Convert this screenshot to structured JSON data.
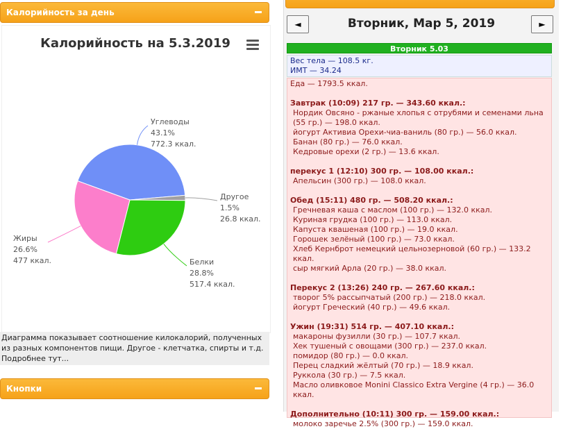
{
  "left_panel": {
    "header": "Калорийность за день",
    "description": "Диаграмма показывает соотношение килокалорий, полученных из разных компонентов пищи. Другое - клетчатка, спирты и т.д. Подробнее тут...",
    "buttons_header": "Кнопки"
  },
  "chart_data": {
    "type": "pie",
    "title": "Калорийность на 5.3.2019",
    "categories": [
      "Углеводы",
      "Другое",
      "Белки",
      "Жиры"
    ],
    "values": [
      43.1,
      1.5,
      28.8,
      26.6
    ],
    "value_labels": [
      "43.1%",
      "1.5%",
      "28.8%",
      "26.6%"
    ],
    "kcal_labels": [
      "772.3 ккал.",
      "26.8 ккал.",
      "517.4 ккал.",
      "477 ккал."
    ],
    "colors": [
      "#6f8ff7",
      "#a0a0a0",
      "#2ecc11",
      "#fc7ecb"
    ]
  },
  "right_panel": {
    "date_header": "Вторник, Мар 5, 2019",
    "prev": "◄",
    "next": "►",
    "day_bar": "Вторник 5.03",
    "body": [
      "Вес тела — 108.5 кг.",
      "ИМТ — 34.24"
    ],
    "food_total": "Еда — 1793.5 ккал.",
    "meals": [
      {
        "title": "Завтрак (10:09) 217 гр. — 343.60 ккал.:",
        "items": [
          "Нордик Овсяно - ржаные хлопья с отрубями и семенами льна (55 гр.) — 198.0 ккал.",
          "йогурт Активиа Орехи-чиа-ваниль (80 гр.) — 56.0 ккал.",
          "Банан (80 гр.) — 76.0 ккал.",
          "Кедровые орехи (2 гр.) — 13.6 ккал."
        ]
      },
      {
        "title": "перекус 1 (12:10) 300 гр. — 108.00 ккал.:",
        "items": [
          "Апельсин (300 гр.) — 108.0 ккал."
        ]
      },
      {
        "title": "Обед (15:11) 480 гр. — 508.20 ккал.:",
        "items": [
          "Гречневая каша с маслом (100 гр.) — 132.0 ккал.",
          "Куриная грудка (100 гр.) — 113.0 ккал.",
          "Капуста квашеная (100 гр.) — 19.0 ккал.",
          "Горошек зелёный (100 гр.) — 73.0 ккал.",
          "Хлеб Кернброт немецкий цельнозерновой (60 гр.) — 133.2 ккал.",
          "сыр мягкий Арла (20 гр.) — 38.0 ккал."
        ]
      },
      {
        "title": "Перекус 2 (13:26) 240 гр. — 267.60 ккал.:",
        "items": [
          "творог 5% рассыпчатый (200 гр.) — 218.0 ккал.",
          "йогурт Греческий (40 гр.) — 49.6 ккал."
        ]
      },
      {
        "title": "Ужин (19:31) 514 гр. — 407.10 ккал.:",
        "items": [
          "макароны фузилли (30 гр.) — 107.7 ккал.",
          "Хек тушеный с овощами (300 гр.) — 237.0 ккал.",
          "помидор (80 гр.) — 0.0 ккал.",
          "Перец сладкий жёлтый (70 гр.) — 18.9 ккал.",
          "Руккола (30 гр.) — 7.5 ккал.",
          "Масло оливковое Monini Classico Extra Vergine (4 гр.) — 36.0 ккал."
        ]
      },
      {
        "title": "Дополнительно (10:11) 300 гр. — 159.00 ккал.:",
        "items": [
          "молоко заречье 2.5% (300 гр.) — 159.0 ккал."
        ]
      }
    ]
  }
}
